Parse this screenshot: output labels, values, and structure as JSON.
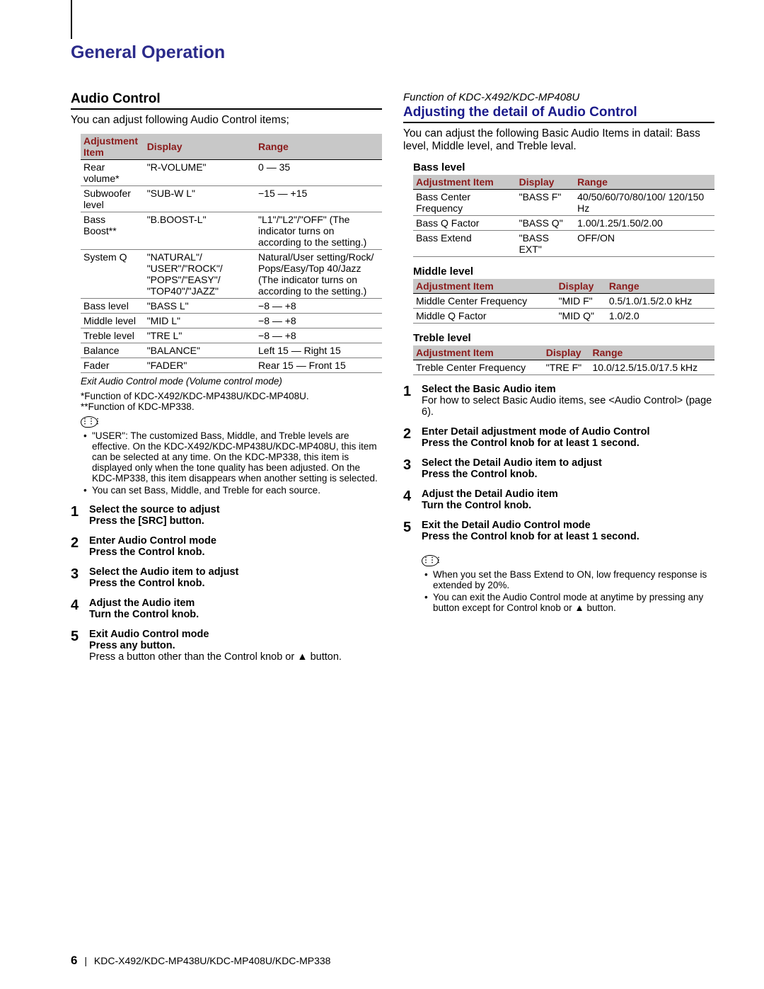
{
  "page_title": "General Operation",
  "left": {
    "section_title": "Audio Control",
    "intro": "You can adjust following Audio Control items;",
    "table": {
      "headers": [
        "Adjustment Item",
        "Display",
        "Range"
      ],
      "rows": [
        [
          "Rear volume*",
          "\"R-VOLUME\"",
          "0 — 35"
        ],
        [
          "Subwoofer level",
          "\"SUB-W L\"",
          "−15 — +15"
        ],
        [
          "Bass Boost**",
          "\"B.BOOST-L\"",
          "\"L1\"/\"L2\"/\"OFF\" (The indicator turns on according to the setting.)"
        ],
        [
          "System Q",
          "\"NATURAL\"/ \"USER\"/\"ROCK\"/ \"POPS\"/\"EASY\"/ \"TOP40\"/\"JAZZ\"",
          "Natural/User setting/Rock/ Pops/Easy/Top 40/Jazz (The indicator turns on according to the setting.)"
        ],
        [
          "Bass level",
          "\"BASS L\"",
          "−8 — +8"
        ],
        [
          "Middle level",
          "\"MID L\"",
          "−8 — +8"
        ],
        [
          "Treble level",
          "\"TRE L\"",
          "−8 — +8"
        ],
        [
          "Balance",
          "\"BALANCE\"",
          "Left 15 — Right 15"
        ],
        [
          "Fader",
          "\"FADER\"",
          "Rear 15 — Front 15"
        ]
      ],
      "footnote": "Exit Audio Control mode   (Volume control mode)"
    },
    "notes": [
      "*Function of KDC-X492/KDC-MP438U/KDC-MP408U.",
      "**Function of KDC-MP338."
    ],
    "bullets": [
      "\"USER\": The customized Bass, Middle, and Treble levels are effective. On the KDC-X492/KDC-MP438U/KDC-MP408U, this item can be selected at any time. On the KDC-MP338, this item is displayed only when the tone quality has been adjusted. On the KDC-MP338, this item disappears when another setting is selected.",
      "You can set Bass, Middle, and Treble for each source."
    ],
    "steps": [
      {
        "n": "1",
        "title": "Select the source to adjust",
        "body": "Press the [SRC] button."
      },
      {
        "n": "2",
        "title": "Enter Audio Control mode",
        "body": "Press the Control knob."
      },
      {
        "n": "3",
        "title": "Select the Audio item to adjust",
        "body": "Press the Control knob."
      },
      {
        "n": "4",
        "title": "Adjust the Audio item",
        "body": "Turn the Control knob."
      },
      {
        "n": "5",
        "title": "Exit Audio Control mode",
        "body": "Press any button.",
        "extra": "Press a button other than the Control knob or ▲ button."
      }
    ]
  },
  "right": {
    "func_line": "Function of KDC-X492/KDC-MP408U",
    "section_title": "Adjusting the detail of Audio Control",
    "intro": "You can adjust the following Basic Audio Items in datail: Bass level, Middle level, and Treble leval.",
    "groups": [
      {
        "name": "Bass level",
        "headers": [
          "Adjustment Item",
          "Display",
          "Range"
        ],
        "rows": [
          [
            "Bass Center Frequency",
            "\"BASS F\"",
            "40/50/60/70/80/100/ 120/150 Hz"
          ],
          [
            "Bass Q Factor",
            "\"BASS Q\"",
            "1.00/1.25/1.50/2.00"
          ],
          [
            "Bass Extend",
            "\"BASS EXT\"",
            "OFF/ON"
          ]
        ]
      },
      {
        "name": "Middle level",
        "headers": [
          "Adjustment Item",
          "Display",
          "Range"
        ],
        "rows": [
          [
            "Middle Center Frequency",
            "\"MID  F\"",
            "0.5/1.0/1.5/2.0 kHz"
          ],
          [
            "Middle Q Factor",
            "\"MID  Q\"",
            "1.0/2.0"
          ]
        ]
      },
      {
        "name": "Treble level",
        "headers": [
          "Adjustment Item",
          "Display",
          "Range"
        ],
        "rows": [
          [
            "Treble Center Frequency",
            "\"TRE  F\"",
            "10.0/12.5/15.0/17.5 kHz"
          ]
        ]
      }
    ],
    "steps": [
      {
        "n": "1",
        "title": "Select the Basic Audio item",
        "extra": "For how to select Basic Audio items, see <Audio Control> (page 6)."
      },
      {
        "n": "2",
        "title": "Enter Detail adjustment mode of Audio Control",
        "body": "Press the Control knob for at least 1 second."
      },
      {
        "n": "3",
        "title": "Select the Detail Audio item to adjust",
        "body": "Press the Control knob."
      },
      {
        "n": "4",
        "title": "Adjust the Detail Audio item",
        "body": "Turn the Control knob."
      },
      {
        "n": "5",
        "title": "Exit the Detail Audio Control mode",
        "body": "Press the Control knob for at least 1 second."
      }
    ],
    "bullets": [
      "When you set the Bass Extend to ON, low frequency response is extended by 20%.",
      "You can exit the Audio Control mode at anytime by pressing any button except for Control knob or ▲ button."
    ]
  },
  "footer": {
    "page": "6",
    "models": "KDC-X492/KDC-MP438U/KDC-MP408U/KDC-MP338"
  }
}
